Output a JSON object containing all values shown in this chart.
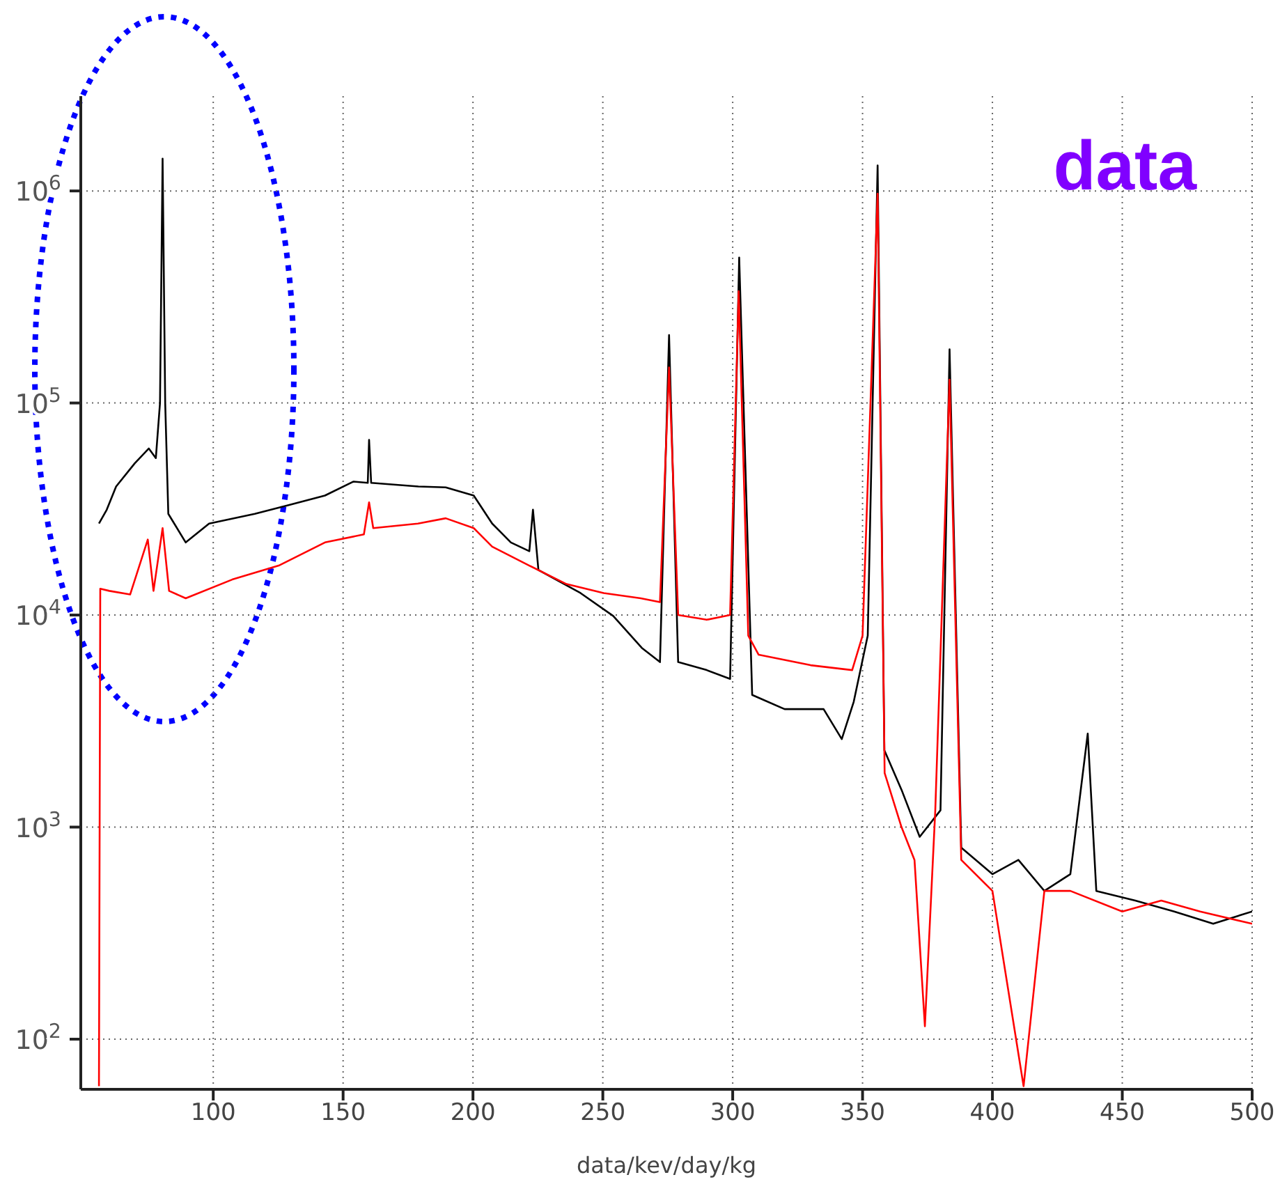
{
  "chart_data": {
    "type": "line",
    "xlabel": "data/kev/day/kg",
    "annotations": [
      "data"
    ],
    "log": "y",
    "grid": true,
    "xlim": [
      49,
      500
    ],
    "xticks": [
      100,
      150,
      200,
      250,
      300,
      350,
      400,
      450,
      500
    ],
    "ylim": [
      58,
      2800000
    ],
    "yticks": [
      {
        "value": 100,
        "label": "10$^{2}$"
      },
      {
        "value": 1000,
        "label": "10$^{3}$"
      },
      {
        "value": 10000,
        "label": "10$^{4}$"
      },
      {
        "value": 100000,
        "label": "10$^{5}$"
      },
      {
        "value": 1000000,
        "label": "10$^{6}$"
      }
    ],
    "series": [
      {
        "color": "#000000",
        "x": [
          56,
          59,
          62.6,
          69.8,
          75.2,
          77.9,
          79.5,
          80.5,
          81.5,
          82.7,
          89.4,
          98.4,
          116,
          129,
          143,
          154,
          159.5,
          160,
          160.8,
          179,
          189.5,
          200.3,
          207.4,
          214.6,
          221.7,
          223.1,
          225.2,
          241.4,
          254,
          265,
          272,
          275.5,
          279,
          290,
          299,
          302.5,
          307.5,
          320,
          335,
          342,
          346.6,
          352,
          355.8,
          358.4,
          365,
          372,
          380,
          383.5,
          388,
          400,
          410,
          420,
          430,
          436.7,
          440,
          455,
          470,
          485,
          500
        ],
        "values": [
          27000,
          31400,
          40400,
          52000,
          61000,
          55000,
          100000,
          1420000,
          100000,
          30000,
          22000,
          27000,
          30000,
          33000,
          36600,
          42600,
          42000,
          67000,
          42000,
          40400,
          40000,
          36600,
          27000,
          22000,
          20000,
          31400,
          16300,
          12700,
          9900,
          7000,
          6000,
          209000,
          6000,
          5500,
          5000,
          485000,
          4200,
          3600,
          3600,
          2600,
          3900,
          8000,
          1320000,
          2300,
          1500,
          900,
          1200,
          179000,
          800,
          600,
          700,
          500,
          600,
          2760,
          500,
          450,
          400,
          350,
          400
        ]
      },
      {
        "color": "#ff0000",
        "x": [
          56,
          56.5,
          60,
          68,
          74.8,
          77,
          80.5,
          83,
          89.4,
          107.3,
          125.2,
          143,
          158,
          160,
          161.6,
          178.8,
          189.5,
          200.3,
          207.4,
          221.7,
          236,
          250.3,
          264.6,
          272,
          275.5,
          279,
          290,
          299,
          302.3,
          306,
          310,
          330,
          346,
          350,
          355.8,
          358.5,
          365,
          370,
          374,
          378,
          383.5,
          388,
          400,
          412,
          420,
          430,
          450,
          465,
          480,
          500
        ],
        "values": [
          60,
          13300,
          13000,
          12500,
          22700,
          13000,
          25700,
          13000,
          12000,
          14700,
          17100,
          22000,
          24000,
          34000,
          25700,
          27000,
          28600,
          25700,
          21000,
          17100,
          14000,
          12700,
          12000,
          11500,
          147000,
          10000,
          9500,
          10000,
          337000,
          8000,
          6500,
          5800,
          5500,
          8000,
          970000,
          1800,
          1000,
          700,
          115,
          1200,
          129000,
          700,
          500,
          60,
          500,
          500,
          400,
          450,
          400,
          350
        ]
      }
    ]
  }
}
